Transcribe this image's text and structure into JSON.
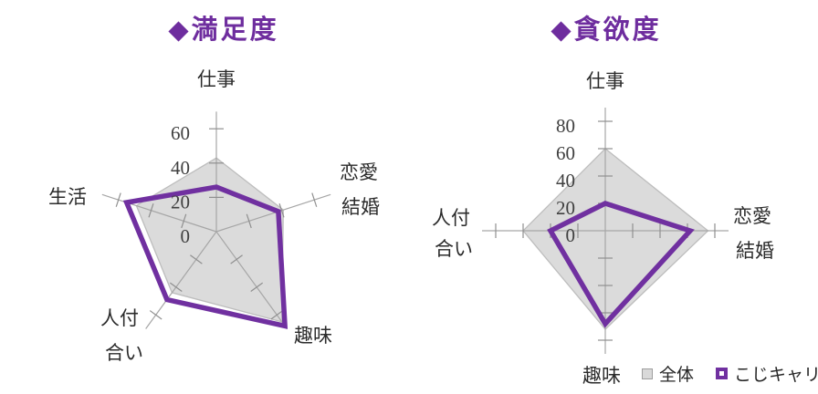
{
  "titles": {
    "left": "◆満足度",
    "right": "◆貪欲度"
  },
  "legend": {
    "items": [
      {
        "label": "全体",
        "swatch": "gray-filled-square"
      },
      {
        "label": "こじキャリ",
        "swatch": "purple-outline-square"
      }
    ]
  },
  "colors": {
    "title_purple": "#6e2d9e",
    "series_purple": "#7030a0",
    "area_fill": "#dbdbdb",
    "area_border": "#bdbdbd",
    "axis_line": "#a6a6a6",
    "tick_mark": "#8f8f8f",
    "tick_text": "#404040",
    "label_text": "#2b2b2b",
    "background": "#ffffff"
  },
  "chart_data": [
    {
      "type": "radar",
      "title": "◆満足度",
      "categories": [
        "仕事",
        "恋愛結婚",
        "趣味",
        "人付合い",
        "生活"
      ],
      "series": [
        {
          "name": "全体",
          "style": "filled-gray-area",
          "values": [
            43,
            41,
            65,
            44,
            49
          ]
        },
        {
          "name": "こじキャリ",
          "style": "purple-line",
          "values": [
            26,
            38,
            68,
            49,
            55
          ]
        }
      ],
      "axis": {
        "min": 0,
        "max": 70,
        "major_unit": 20,
        "tick_labels": [
          0,
          20,
          40,
          60
        ]
      },
      "legend_shown": false
    },
    {
      "type": "radar",
      "title": "◆貪欲度",
      "categories": [
        "仕事",
        "恋愛結婚",
        "趣味",
        "人付合い"
      ],
      "series": [
        {
          "name": "全体",
          "style": "filled-gray-area",
          "values": [
            60,
            75,
            72,
            60
          ]
        },
        {
          "name": "こじキャリ",
          "style": "purple-line",
          "values": [
            20,
            62,
            68,
            40
          ]
        }
      ],
      "axis": {
        "min": 0,
        "max": 90,
        "major_unit": 20,
        "tick_labels": [
          0,
          20,
          40,
          60,
          80
        ]
      },
      "legend_shown": true
    }
  ]
}
